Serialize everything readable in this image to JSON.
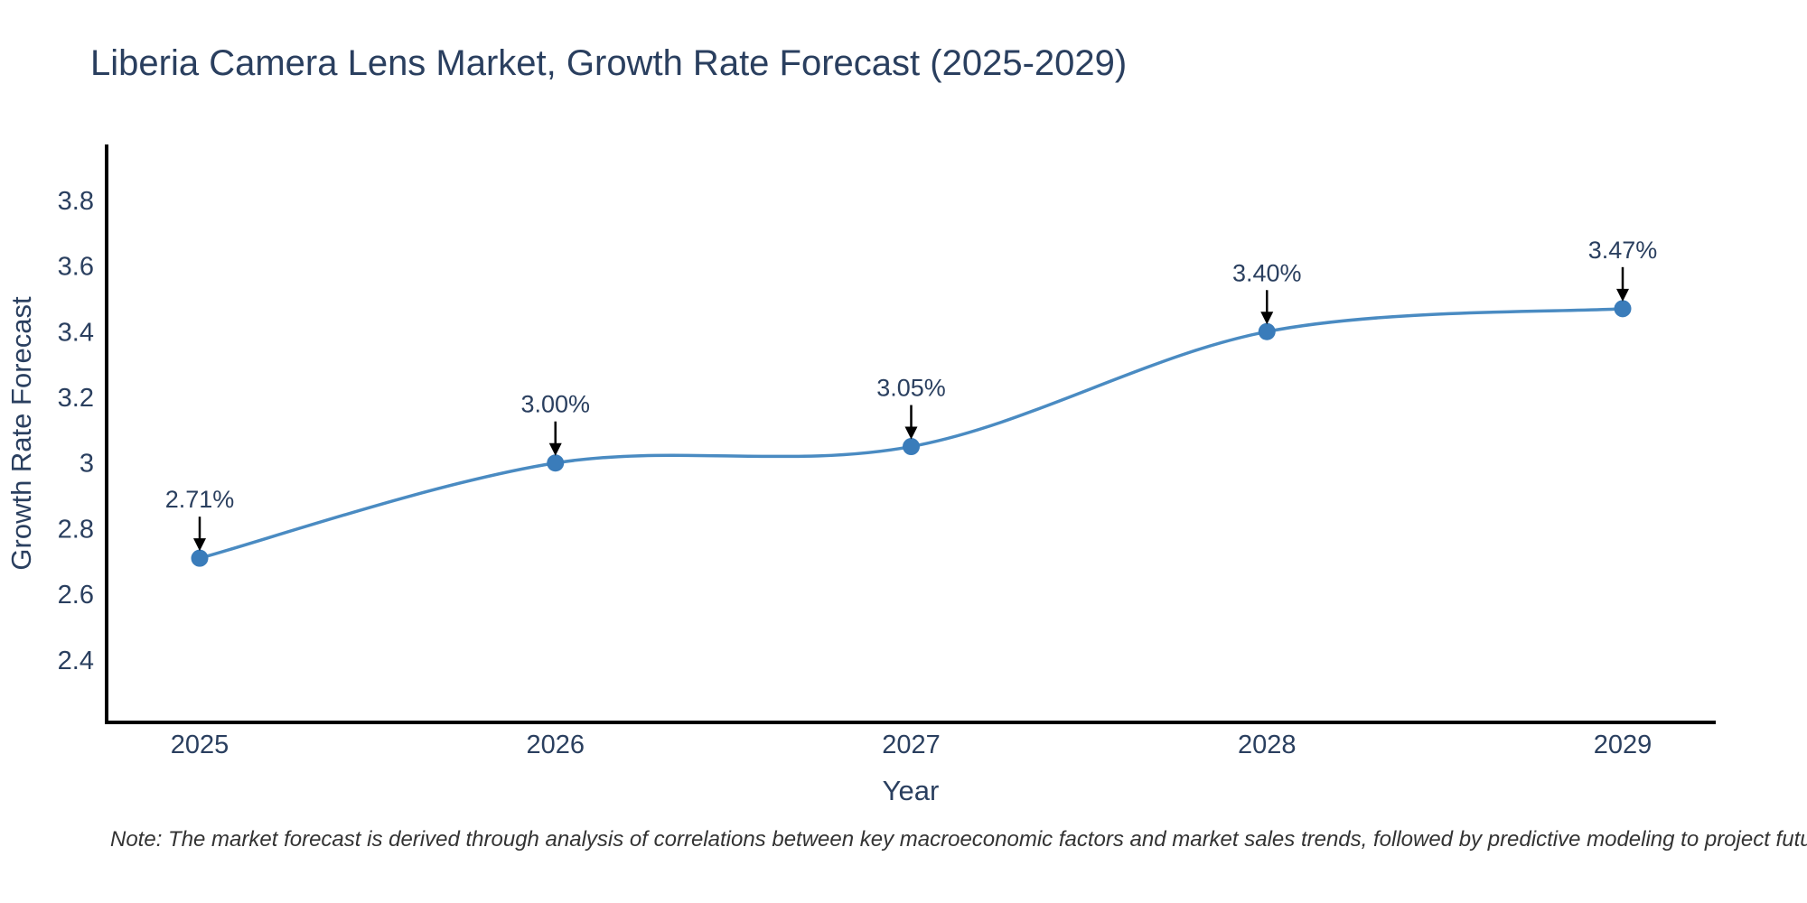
{
  "title": "Liberia Camera Lens Market, Growth Rate Forecast (2025-2029)",
  "note": "Note: The market forecast is derived through analysis of correlations between key macroeconomic factors and market sales trends, followed by predictive modeling to project future sales",
  "chart_data": {
    "type": "line",
    "title": "Liberia Camera Lens Market, Growth Rate Forecast (2025-2029)",
    "xlabel": "Year",
    "ylabel": "Growth Rate Forecast",
    "categories": [
      "2025",
      "2026",
      "2027",
      "2028",
      "2029"
    ],
    "series": [
      {
        "name": "Growth Rate Forecast",
        "values": [
          2.71,
          3.0,
          3.05,
          3.4,
          3.47
        ],
        "data_labels": [
          "2.71%",
          "3.00%",
          "3.05%",
          "3.40%",
          "3.47%"
        ]
      }
    ],
    "ylim": [
      2.21,
      3.97
    ],
    "yticks": [
      2.4,
      2.6,
      2.8,
      3,
      3.2,
      3.4,
      3.6,
      3.8
    ],
    "ytick_labels": [
      "2.4",
      "2.6",
      "2.8",
      "3",
      "3.2",
      "3.4",
      "3.6",
      "3.8"
    ],
    "grid": false,
    "legend": "none",
    "line_shape": "spline",
    "colors": {
      "line": "#4a8bc2",
      "marker": "#3a7cba",
      "text": "#2a3f5f",
      "axis": "#000000",
      "annotation_arrow": "#000000",
      "note_text": "#333333"
    }
  }
}
